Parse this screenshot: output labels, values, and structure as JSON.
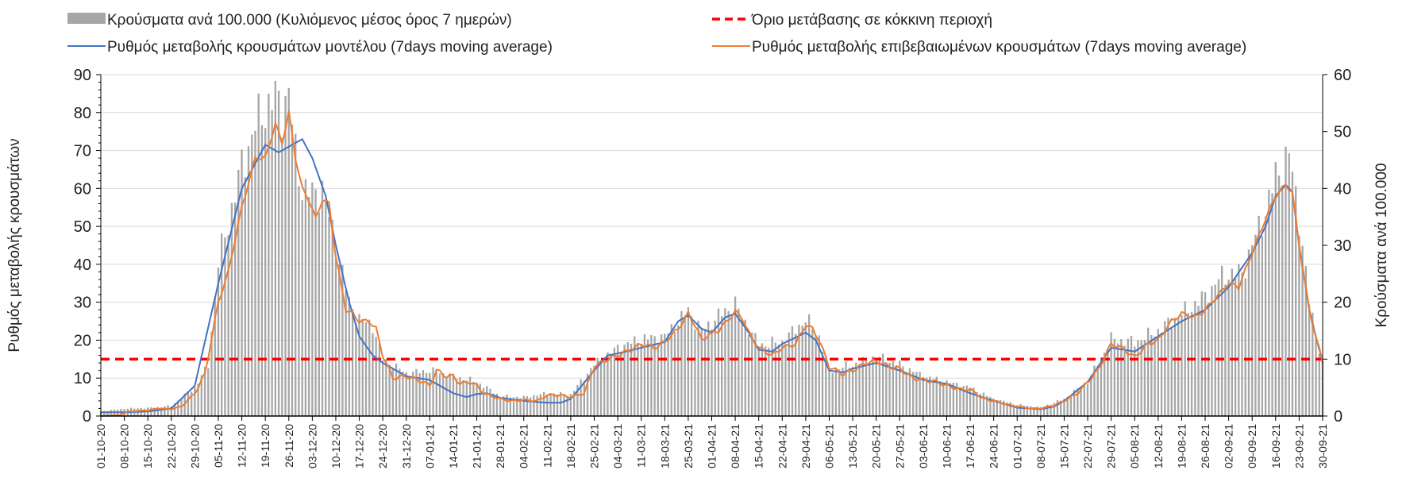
{
  "chart_data": {
    "type": "bar+line",
    "legend": {
      "placement": "top",
      "items": [
        {
          "label": "Κρούσματα ανά 100.000 (Κυλιόμενος μέσος όρος 7 ημερών)",
          "kind": "bar",
          "color": "#a6a6a6"
        },
        {
          "label": "Όριο μετάβασης σε κόκκινη περιοχή",
          "kind": "dashed",
          "color": "#ff0000"
        },
        {
          "label": "Ρυθμός μεταβολής κρουσμάτων μοντέλου (7days moving average)",
          "kind": "line",
          "color": "#4472c4"
        },
        {
          "label": "Ρυθμός μεταβολής επιβεβαιωμένων κρουσμάτων (7days moving average)",
          "kind": "line",
          "color": "#ed7d31"
        }
      ]
    },
    "ylabel": "Ρυθμός μεταβολής κρουσμάτων",
    "y2label": "Κρούσματα ανά 100.000",
    "ylim": [
      0,
      90
    ],
    "y2lim": [
      0,
      60
    ],
    "yticks": [
      "0",
      "10",
      "20",
      "30",
      "40",
      "50",
      "60",
      "70",
      "80",
      "90"
    ],
    "y2ticks": [
      "0",
      "10",
      "20",
      "30",
      "40",
      "50",
      "60"
    ],
    "grid": true,
    "x_days": 365,
    "xticks": [
      "01-10-20",
      "08-10-20",
      "15-10-20",
      "22-10-20",
      "29-10-20",
      "05-11-20",
      "12-11-20",
      "19-11-20",
      "26-11-20",
      "03-12-20",
      "10-12-20",
      "17-12-20",
      "24-12-20",
      "31-12-20",
      "07-01-21",
      "14-01-21",
      "21-01-21",
      "28-01-21",
      "04-02-21",
      "11-02-21",
      "18-02-21",
      "25-02-21",
      "04-03-21",
      "11-03-21",
      "18-03-21",
      "25-03-21",
      "01-04-21",
      "08-04-21",
      "15-04-21",
      "22-04-21",
      "29-04-21",
      "06-05-21",
      "13-05-21",
      "20-05-21",
      "27-05-21",
      "03-06-21",
      "10-06-21",
      "17-06-21",
      "24-06-21",
      "01-07-21",
      "08-07-21",
      "15-07-21",
      "22-07-21",
      "29-07-21",
      "05-08-21",
      "12-08-21",
      "19-08-21",
      "26-08-21",
      "02-09-21",
      "09-09-21",
      "16-09-21",
      "23-09-21",
      "30-09-21"
    ],
    "threshold_left_axis": 15,
    "series": [
      {
        "name": "model_rate",
        "axis": "left",
        "points_day_value": [
          [
            0,
            1
          ],
          [
            7,
            1
          ],
          [
            14,
            1.2
          ],
          [
            21,
            2
          ],
          [
            28,
            8
          ],
          [
            35,
            35
          ],
          [
            42,
            60
          ],
          [
            49,
            71.5
          ],
          [
            53,
            69.5
          ],
          [
            56,
            71
          ],
          [
            60,
            73
          ],
          [
            63,
            68
          ],
          [
            67,
            58
          ],
          [
            70,
            45
          ],
          [
            74,
            30
          ],
          [
            77,
            21
          ],
          [
            81,
            16
          ],
          [
            84,
            14
          ],
          [
            91,
            10.5
          ],
          [
            98,
            9.5
          ],
          [
            105,
            6
          ],
          [
            109,
            5
          ],
          [
            112,
            5.8
          ],
          [
            115,
            6
          ],
          [
            119,
            4.8
          ],
          [
            126,
            4
          ],
          [
            133,
            3.5
          ],
          [
            137,
            3.5
          ],
          [
            140,
            4.5
          ],
          [
            147,
            12
          ],
          [
            151,
            16
          ],
          [
            154,
            16.5
          ],
          [
            161,
            18
          ],
          [
            168,
            19.5
          ],
          [
            172,
            25
          ],
          [
            175,
            26.5
          ],
          [
            179,
            23
          ],
          [
            182,
            22
          ],
          [
            186,
            26
          ],
          [
            189,
            27
          ],
          [
            193,
            22
          ],
          [
            196,
            17.5
          ],
          [
            200,
            17
          ],
          [
            203,
            19
          ],
          [
            210,
            22
          ],
          [
            213,
            20
          ],
          [
            217,
            12
          ],
          [
            221,
            11.5
          ],
          [
            224,
            12.5
          ],
          [
            231,
            14
          ],
          [
            238,
            12
          ],
          [
            245,
            9.5
          ],
          [
            252,
            8.5
          ],
          [
            259,
            6
          ],
          [
            266,
            4
          ],
          [
            273,
            2.2
          ],
          [
            280,
            1.8
          ],
          [
            284,
            2.5
          ],
          [
            287,
            4
          ],
          [
            294,
            9
          ],
          [
            301,
            18
          ],
          [
            308,
            17
          ],
          [
            315,
            21
          ],
          [
            322,
            25
          ],
          [
            329,
            28
          ],
          [
            336,
            34
          ],
          [
            343,
            43
          ],
          [
            347,
            50
          ],
          [
            350,
            58
          ],
          [
            353,
            61
          ],
          [
            355,
            59
          ],
          [
            357,
            45
          ],
          [
            360,
            28
          ],
          [
            364,
            14
          ]
        ]
      },
      {
        "name": "confirmed_rate",
        "axis": "left",
        "points_day_value": [
          [
            0,
            0
          ],
          [
            6,
            0.3
          ],
          [
            8,
            1.2
          ],
          [
            14,
            1.5
          ],
          [
            17,
            2
          ],
          [
            21,
            1.8
          ],
          [
            24,
            2.5
          ],
          [
            28,
            6
          ],
          [
            31,
            11
          ],
          [
            35,
            30
          ],
          [
            38,
            38
          ],
          [
            42,
            55
          ],
          [
            46,
            68
          ],
          [
            49,
            68
          ],
          [
            52,
            77
          ],
          [
            54,
            72
          ],
          [
            56,
            80
          ],
          [
            58,
            68
          ],
          [
            60,
            60
          ],
          [
            62,
            57
          ],
          [
            64,
            52
          ],
          [
            66,
            57
          ],
          [
            68,
            56
          ],
          [
            70,
            42
          ],
          [
            73,
            28
          ],
          [
            75,
            27
          ],
          [
            77,
            25
          ],
          [
            80,
            25
          ],
          [
            82,
            23
          ],
          [
            84,
            16
          ],
          [
            87,
            10
          ],
          [
            91,
            10.5
          ],
          [
            96,
            9
          ],
          [
            98,
            8
          ],
          [
            100,
            12
          ],
          [
            103,
            10.5
          ],
          [
            105,
            10.5
          ],
          [
            107,
            8.5
          ],
          [
            110,
            9
          ],
          [
            112,
            8
          ],
          [
            114,
            6
          ],
          [
            119,
            4.5
          ],
          [
            122,
            4
          ],
          [
            126,
            4.2
          ],
          [
            130,
            4
          ],
          [
            133,
            5.5
          ],
          [
            137,
            5.5
          ],
          [
            140,
            5
          ],
          [
            144,
            6
          ],
          [
            147,
            13
          ],
          [
            151,
            15
          ],
          [
            154,
            16
          ],
          [
            158,
            17.5
          ],
          [
            161,
            19
          ],
          [
            165,
            18
          ],
          [
            168,
            19.5
          ],
          [
            172,
            23
          ],
          [
            175,
            27
          ],
          [
            177,
            24
          ],
          [
            179,
            20
          ],
          [
            182,
            22
          ],
          [
            184,
            22.5
          ],
          [
            189,
            27.5
          ],
          [
            191,
            26
          ],
          [
            193,
            22
          ],
          [
            196,
            18
          ],
          [
            198,
            17
          ],
          [
            200,
            16
          ],
          [
            203,
            18
          ],
          [
            207,
            19
          ],
          [
            210,
            24
          ],
          [
            212,
            23
          ],
          [
            214,
            20
          ],
          [
            217,
            13
          ],
          [
            221,
            11
          ],
          [
            224,
            12
          ],
          [
            228,
            14
          ],
          [
            231,
            14.5
          ],
          [
            235,
            13
          ],
          [
            238,
            12.5
          ],
          [
            242,
            10
          ],
          [
            245,
            9.5
          ],
          [
            249,
            9
          ],
          [
            252,
            8
          ],
          [
            256,
            7
          ],
          [
            259,
            7
          ],
          [
            263,
            4.5
          ],
          [
            266,
            4
          ],
          [
            270,
            3
          ],
          [
            273,
            2.5
          ],
          [
            277,
            2
          ],
          [
            280,
            2
          ],
          [
            284,
            2.8
          ],
          [
            287,
            4
          ],
          [
            291,
            6
          ],
          [
            294,
            9
          ],
          [
            297,
            12
          ],
          [
            301,
            19
          ],
          [
            304,
            18
          ],
          [
            308,
            15.5
          ],
          [
            312,
            19
          ],
          [
            315,
            20
          ],
          [
            319,
            25
          ],
          [
            322,
            27
          ],
          [
            326,
            26
          ],
          [
            329,
            28
          ],
          [
            333,
            32
          ],
          [
            336,
            35
          ],
          [
            339,
            34
          ],
          [
            343,
            43
          ],
          [
            347,
            52
          ],
          [
            350,
            58
          ],
          [
            353,
            61
          ],
          [
            355,
            59
          ],
          [
            357,
            45
          ],
          [
            360,
            28
          ],
          [
            364,
            14
          ]
        ]
      },
      {
        "name": "cases_per_100k",
        "axis": "right",
        "points_day_value": [
          [
            0,
            0.8
          ],
          [
            7,
            1.3
          ],
          [
            14,
            1.4
          ],
          [
            21,
            1.8
          ],
          [
            28,
            5
          ],
          [
            32,
            9
          ],
          [
            35,
            27
          ],
          [
            38,
            34
          ],
          [
            42,
            44
          ],
          [
            46,
            51
          ],
          [
            49,
            54
          ],
          [
            52,
            56
          ],
          [
            54,
            54
          ],
          [
            56,
            57
          ],
          [
            58,
            46
          ],
          [
            60,
            40
          ],
          [
            63,
            39
          ],
          [
            66,
            40
          ],
          [
            70,
            30
          ],
          [
            74,
            20
          ],
          [
            77,
            17
          ],
          [
            81,
            16
          ],
          [
            84,
            10
          ],
          [
            91,
            7.5
          ],
          [
            98,
            8
          ],
          [
            105,
            7
          ],
          [
            112,
            6
          ],
          [
            119,
            3.5
          ],
          [
            126,
            3.3
          ],
          [
            133,
            4
          ],
          [
            140,
            3.8
          ],
          [
            147,
            9
          ],
          [
            154,
            12
          ],
          [
            161,
            13.5
          ],
          [
            168,
            14
          ],
          [
            175,
            18.5
          ],
          [
            179,
            15
          ],
          [
            186,
            18.5
          ],
          [
            189,
            19.5
          ],
          [
            196,
            12.5
          ],
          [
            203,
            13
          ],
          [
            210,
            17
          ],
          [
            214,
            14
          ],
          [
            217,
            8
          ],
          [
            224,
            9
          ],
          [
            231,
            10.5
          ],
          [
            238,
            9
          ],
          [
            245,
            7
          ],
          [
            252,
            6
          ],
          [
            259,
            5
          ],
          [
            266,
            3
          ],
          [
            273,
            2
          ],
          [
            280,
            1.5
          ],
          [
            287,
            3
          ],
          [
            294,
            6
          ],
          [
            301,
            13.5
          ],
          [
            308,
            13
          ],
          [
            315,
            15
          ],
          [
            322,
            18
          ],
          [
            329,
            21
          ],
          [
            333,
            24
          ],
          [
            336,
            25
          ],
          [
            340,
            25
          ],
          [
            343,
            30
          ],
          [
            347,
            36
          ],
          [
            350,
            42
          ],
          [
            352,
            44
          ],
          [
            354,
            46
          ],
          [
            357,
            35
          ],
          [
            360,
            20
          ],
          [
            364,
            9
          ]
        ]
      }
    ]
  }
}
